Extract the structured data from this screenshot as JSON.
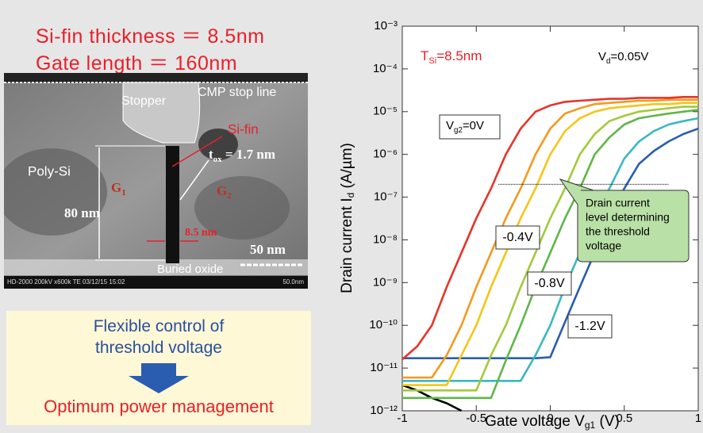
{
  "left_panel": {
    "title_lines": [
      "Si-fin thickness ＝ 8.5nm",
      "Gate length ＝ 160nm"
    ],
    "image_labels": {
      "stopper": "Stopper",
      "cmp": "CMP stop line",
      "si_fin": "Si-fin",
      "poly_si": "Poly-Si",
      "tox_main": "t",
      "tox_sub": "ox",
      "tox_value": " = 1.7 nm",
      "g1_main": "G",
      "g1_sub": "1",
      "g2_main": "G",
      "g2_sub": "2",
      "height": "80 nm",
      "width": "8.5 nm",
      "scale": "50 nm",
      "buried": "Buried oxide",
      "footer": "HD-2000 200kV x600k TE 03/12/15 15:02",
      "footer_scale": "50.0nm"
    },
    "summary": {
      "lines": [
        "Flexible control of",
        "threshold voltage"
      ],
      "result": "Optimum power management"
    }
  },
  "chart_data": {
    "type": "line",
    "xlabel": {
      "main": "Gate voltage  V",
      "sub": "g1",
      "rest": "  (V)"
    },
    "ylabel": {
      "main": "Drain current  I",
      "sub": "d",
      "rest": "  (A/µm)"
    },
    "x": [
      -1,
      -0.9,
      -0.8,
      -0.7,
      -0.6,
      -0.5,
      -0.4,
      -0.3,
      -0.2,
      -0.1,
      0,
      0.1,
      0.2,
      0.3,
      0.4,
      0.5,
      0.6,
      0.7,
      0.8,
      0.9,
      1
    ],
    "xlim": [
      -1,
      1
    ],
    "xticks": [
      -1,
      -0.5,
      0,
      0.5,
      1
    ],
    "ylim": [
      1e-12,
      0.001
    ],
    "log_y": true,
    "yticks": [
      {
        "value": 1e-12,
        "label": "10⁻¹²"
      },
      {
        "value": 1e-11,
        "label": "10⁻¹¹"
      },
      {
        "value": 1e-10,
        "label": "10⁻¹⁰"
      },
      {
        "value": 1e-09,
        "label": "10⁻⁹"
      },
      {
        "value": 1e-08,
        "label": "10⁻⁸"
      },
      {
        "value": 1e-07,
        "label": "10⁻⁷"
      },
      {
        "value": 1e-06,
        "label": "10⁻⁶"
      },
      {
        "value": 1e-05,
        "label": "10⁻⁵"
      },
      {
        "value": 0.0001,
        "label": "10⁻⁴"
      },
      {
        "value": 0.001,
        "label": "10⁻³"
      }
    ],
    "series": [
      {
        "color": "#000000",
        "values": [
          4e-12,
          3e-12,
          2e-12,
          1.5e-12,
          1e-12,
          null,
          null,
          null,
          null,
          null,
          null,
          null,
          null,
          null,
          null,
          null,
          null,
          null,
          null,
          null,
          null
        ]
      },
      {
        "color": "#2a5db0",
        "values": [
          1.7e-11,
          1.7e-11,
          1.7e-11,
          1.7e-11,
          1.7e-11,
          1.7e-11,
          1.7e-11,
          1.7e-11,
          1.7e-11,
          1.7e-11,
          1.8e-11,
          1.2e-10,
          7.9e-10,
          5e-09,
          3.2e-08,
          1.6e-07,
          6e-07,
          1.2e-06,
          2e-06,
          3e-06,
          4e-06
        ]
      },
      {
        "color": "#3ab8c0",
        "values": [
          5e-12,
          5e-12,
          5e-12,
          5e-12,
          5e-12,
          5e-12,
          5e-12,
          5e-12,
          5e-12,
          2e-11,
          1e-10,
          7.9e-10,
          5e-09,
          3.2e-08,
          1.6e-07,
          8e-07,
          2e-06,
          3.5e-06,
          5e-06,
          6e-06,
          7e-06
        ]
      },
      {
        "color": "#5fb648",
        "values": [
          2e-12,
          2e-12,
          2e-12,
          2e-12,
          2e-12,
          2e-12,
          2e-12,
          1.5e-11,
          1e-10,
          7.9e-10,
          5e-09,
          3.2e-08,
          1.6e-07,
          1e-06,
          2.5e-06,
          5e-06,
          7e-06,
          8e-06,
          9e-06,
          1e-05,
          1.1e-05
        ]
      },
      {
        "color": "#a3c93a",
        "values": [
          3e-12,
          3e-12,
          3e-12,
          3e-12,
          3e-12,
          3e-12,
          2e-11,
          1e-10,
          7.9e-10,
          5e-09,
          3.2e-08,
          1.6e-07,
          1e-06,
          3e-06,
          6e-06,
          8e-06,
          1e-05,
          1.1e-05,
          1.2e-05,
          1.3e-05,
          1.3e-05
        ]
      },
      {
        "color": "#f5c518",
        "values": [
          4e-12,
          4e-12,
          4e-12,
          4e-12,
          2e-11,
          1e-10,
          7.9e-10,
          5e-09,
          3.2e-08,
          1.6e-07,
          1e-06,
          3.5e-06,
          7e-06,
          1e-05,
          1.2e-05,
          1.3e-05,
          1.4e-05,
          1.5e-05,
          1.5e-05,
          1.6e-05,
          1.6e-05
        ]
      },
      {
        "color": "#f39a1e",
        "values": [
          6e-12,
          6e-12,
          6e-12,
          2e-11,
          1e-10,
          7.9e-10,
          5e-09,
          3.2e-08,
          1.6e-07,
          1e-06,
          4e-06,
          9e-06,
          1.2e-05,
          1.5e-05,
          1.6e-05,
          1.7e-05,
          1.8e-05,
          1.8e-05,
          1.9e-05,
          1.9e-05,
          1.9e-05
        ]
      },
      {
        "color": "#e8332a",
        "values": [
          1.6e-11,
          3.2e-11,
          1e-10,
          7.9e-10,
          5e-09,
          3.2e-08,
          1.6e-07,
          1e-06,
          4e-06,
          1e-05,
          1.4e-05,
          1.7e-05,
          1.8e-05,
          1.9e-05,
          2e-05,
          2e-05,
          2.1e-05,
          2.1e-05,
          2.1e-05,
          2.2e-05,
          2.2e-05
        ]
      }
    ],
    "reference_line": {
      "y": 2e-07,
      "x": [
        -0.35,
        0.8
      ]
    },
    "annotations": {
      "tsi": {
        "main": "T",
        "sub": "Si",
        "rest": "=8.5nm"
      },
      "vd": {
        "main": "V",
        "sub": "d",
        "rest": "=0.05V"
      },
      "vg0": {
        "main": "V",
        "sub": "g2",
        "rest": "=0V"
      },
      "vg04": "-0.4V",
      "vg08": "-0.8V",
      "vg12": "-1.2V",
      "callout": [
        "Drain current",
        "level determining",
        "the threshold",
        "voltage"
      ]
    }
  }
}
